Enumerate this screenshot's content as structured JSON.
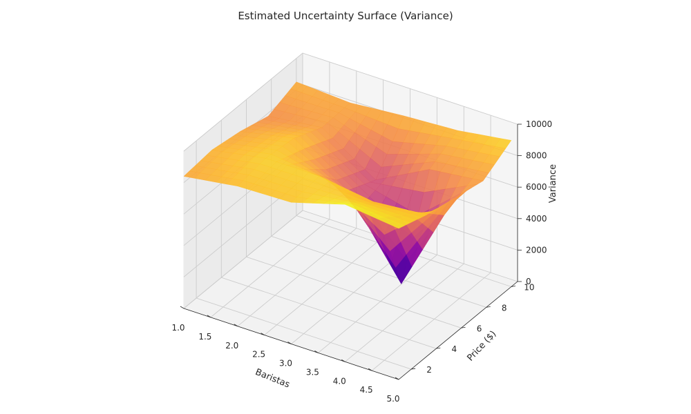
{
  "chart_data": {
    "type": "surface",
    "title": "Estimated Uncertainty Surface (Variance)",
    "xlabel": "Baristas",
    "ylabel": "Price ($)",
    "zlabel": "Variance",
    "xlim": [
      1,
      5
    ],
    "ylim": [
      1,
      10.5
    ],
    "zlim": [
      0,
      10000
    ],
    "x_ticks": [
      1.0,
      1.5,
      2.0,
      2.5,
      3.0,
      3.5,
      4.0,
      4.5,
      5.0
    ],
    "x_tick_labels": [
      "1.0",
      "1.5",
      "2.0",
      "2.5",
      "3.0",
      "3.5",
      "4.0",
      "4.5",
      "5.0"
    ],
    "y_ticks": [
      2,
      4,
      6,
      8,
      10
    ],
    "y_tick_labels": [
      "2",
      "4",
      "6",
      "8",
      "10"
    ],
    "z_ticks": [
      0,
      2000,
      4000,
      6000,
      8000,
      10000
    ],
    "z_tick_labels": [
      "0",
      "2000",
      "4000",
      "6000",
      "8000",
      "10000"
    ],
    "colormap": "plasma",
    "grid": true,
    "x": [
      1,
      2,
      3,
      4,
      5
    ],
    "y": [
      1,
      3.25,
      5.5,
      7.75,
      10
    ],
    "z": [
      [
        8400,
        8900,
        9000,
        10000,
        9600
      ],
      [
        8600,
        9200,
        9200,
        8700,
        9000
      ],
      [
        8300,
        9000,
        6800,
        2000,
        8600
      ],
      [
        7800,
        8200,
        6000,
        7800,
        8200
      ],
      [
        8500,
        8300,
        8600,
        8800,
        9300
      ]
    ]
  }
}
